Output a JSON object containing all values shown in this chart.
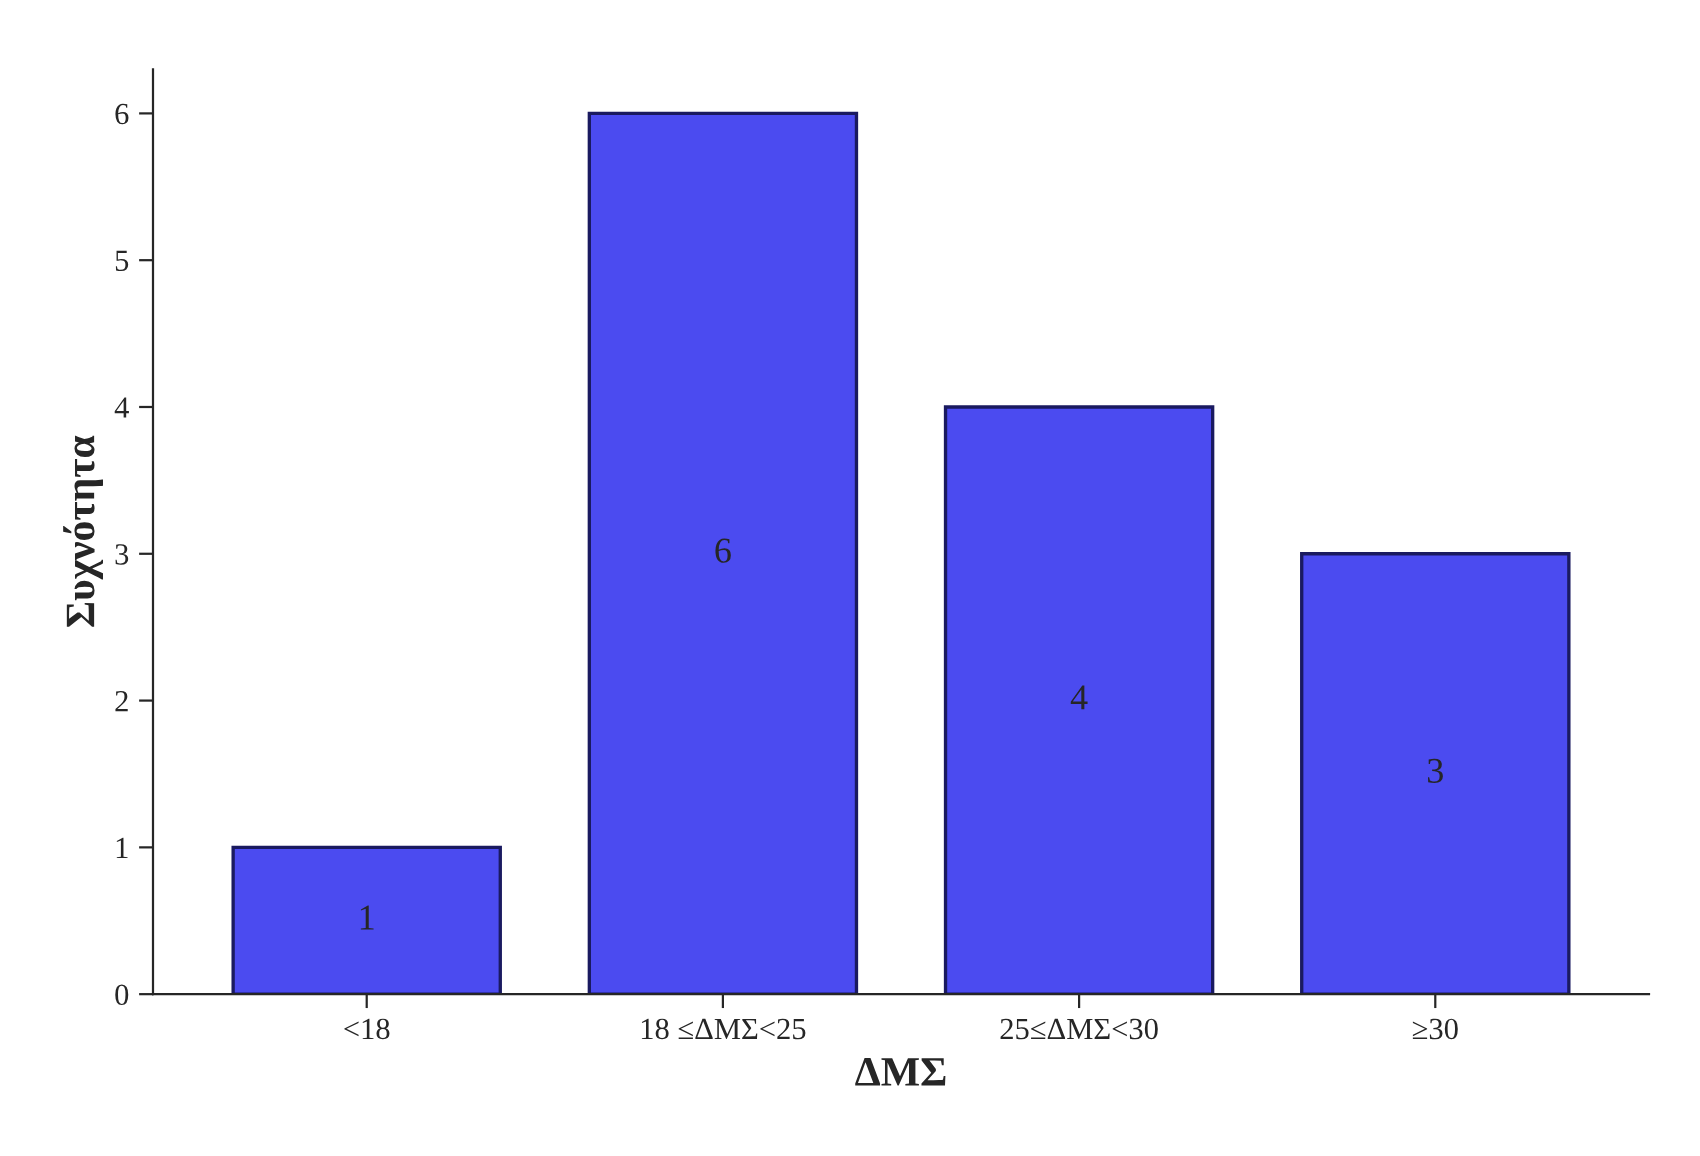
{
  "chart_data": {
    "type": "bar",
    "xlabel": "ΔΜΣ",
    "ylabel": "Συχνότητα",
    "categories": [
      "<18",
      "18 ≤ΔΜΣ<25",
      "25≤ΔΜΣ<30",
      "≥30"
    ],
    "values": [
      1,
      6,
      4,
      3
    ],
    "color": "#4b4bf0",
    "data_labels": true,
    "ylim": [
      0,
      6.3
    ],
    "yticks": [
      0,
      1,
      2,
      3,
      4,
      5,
      6
    ],
    "grid": false,
    "legend": false
  }
}
